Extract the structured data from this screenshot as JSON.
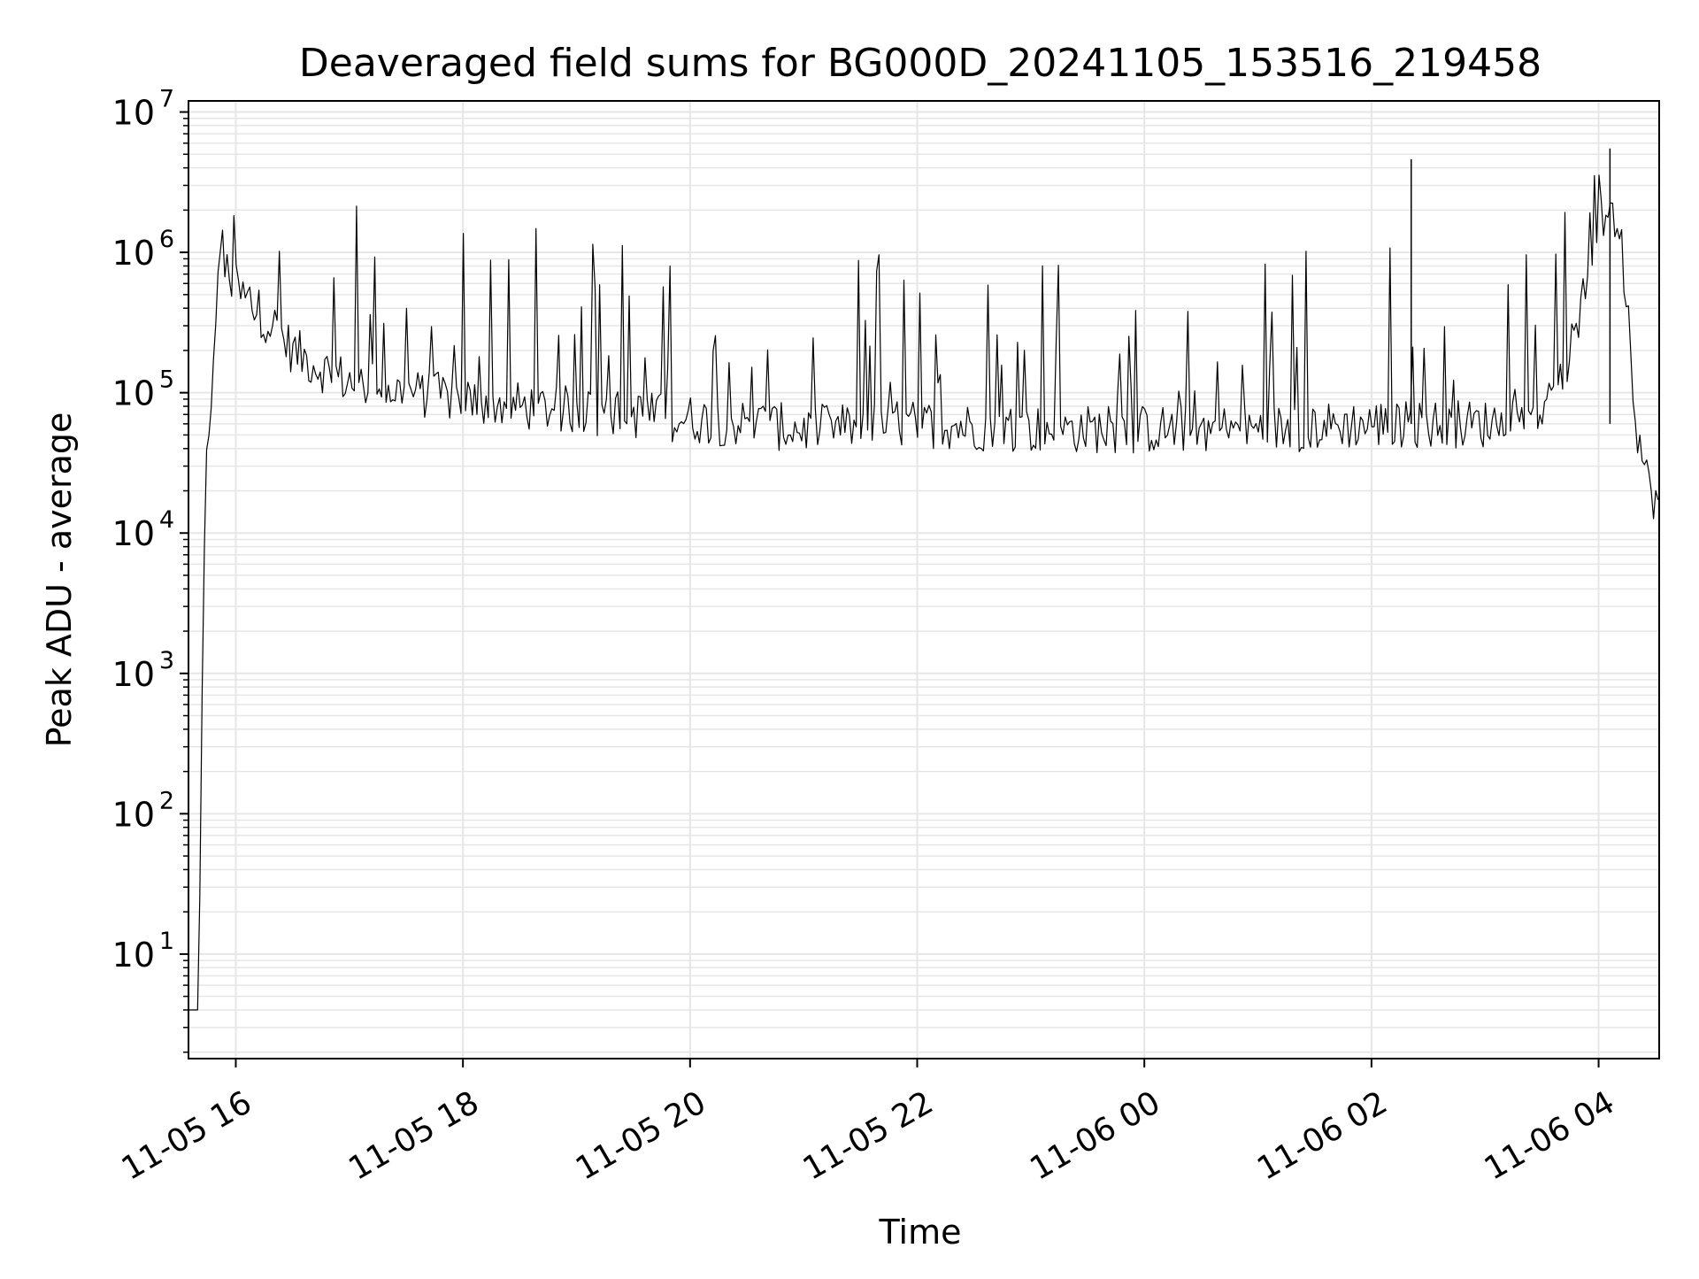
{
  "chart_data": {
    "type": "line",
    "title": "Deaveraged field sums for BG000D_20241105_153516_219458",
    "xlabel": "Time",
    "ylabel": "Peak ADU - average",
    "y_scale": "log",
    "ylim": [
      1.8,
      12000000
    ],
    "xlim": [
      "2024-11-05 15:35",
      "2024-11-06 04:32"
    ],
    "x_ticks": [
      {
        "x": "2024-11-05 16:00",
        "label": "11-05 16"
      },
      {
        "x": "2024-11-05 18:00",
        "label": "11-05 18"
      },
      {
        "x": "2024-11-05 20:00",
        "label": "11-05 20"
      },
      {
        "x": "2024-11-05 22:00",
        "label": "11-05 22"
      },
      {
        "x": "2024-11-06 00:00",
        "label": "11-06 00"
      },
      {
        "x": "2024-11-06 02:00",
        "label": "11-06 02"
      },
      {
        "x": "2024-11-06 04:00",
        "label": "11-06 04"
      }
    ],
    "y_ticks": [
      {
        "y": 10,
        "base": "10",
        "exp": "1"
      },
      {
        "y": 100,
        "base": "10",
        "exp": "2"
      },
      {
        "y": 1000,
        "base": "10",
        "exp": "3"
      },
      {
        "y": 10000,
        "base": "10",
        "exp": "4"
      },
      {
        "y": 100000,
        "base": "10",
        "exp": "5"
      },
      {
        "y": 1000000,
        "base": "10",
        "exp": "6"
      },
      {
        "y": 10000000,
        "base": "10",
        "exp": "7"
      }
    ],
    "grid": true,
    "grid_minor": true,
    "line_color": "#000000",
    "grid_color": "#e6e6e6",
    "series": [
      {
        "x": [
          "2024-11-05 15:35",
          "2024-11-05 15:39",
          "2024-11-05 15:40",
          "2024-11-05 15:41",
          "2024-11-05 15:42",
          "2024-11-05 15:43",
          "2024-11-05 15:44",
          "2024-11-05 15:46",
          "2024-11-05 15:48",
          "2024-11-05 15:50",
          "2024-11-05 15:52",
          "2024-11-05 15:56",
          "2024-11-05 16:02",
          "2024-11-05 16:10",
          "2024-11-05 16:20",
          "2024-11-05 16:30",
          "2024-11-05 16:45",
          "2024-11-05 17:00",
          "2024-11-05 17:30",
          "2024-11-05 18:00",
          "2024-11-05 18:30",
          "2024-11-05 19:00",
          "2024-11-05 19:30",
          "2024-11-05 20:00",
          "2024-11-05 20:30",
          "2024-11-05 21:00",
          "2024-11-05 22:00",
          "2024-11-05 23:00",
          "2024-11-06 00:00",
          "2024-11-06 01:00",
          "2024-11-06 02:00",
          "2024-11-06 03:00",
          "2024-11-06 03:35",
          "2024-11-06 03:50",
          "2024-11-06 04:00",
          "2024-11-06 04:05",
          "2024-11-06 04:10",
          "2024-11-06 04:15",
          "2024-11-06 04:20",
          "2024-11-06 04:25",
          "2024-11-06 04:32"
        ],
        "y": [
          4,
          4,
          4,
          30,
          300,
          3000,
          25000,
          40000,
          200000,
          500000,
          800000,
          700000,
          500000,
          400000,
          300000,
          200000,
          150000,
          120000,
          100000,
          90000,
          80000,
          75000,
          70000,
          65000,
          60000,
          55000,
          60000,
          55000,
          55000,
          55000,
          60000,
          60000,
          80000,
          300000,
          1500000,
          2000000,
          1200000,
          500000,
          60000,
          25000,
          15000
        ]
      }
    ],
    "annotations": [
      {
        "x": "2024-11-06 02:21",
        "y": 4600000
      },
      {
        "x": "2024-11-06 04:06",
        "y": 5500000
      }
    ]
  }
}
